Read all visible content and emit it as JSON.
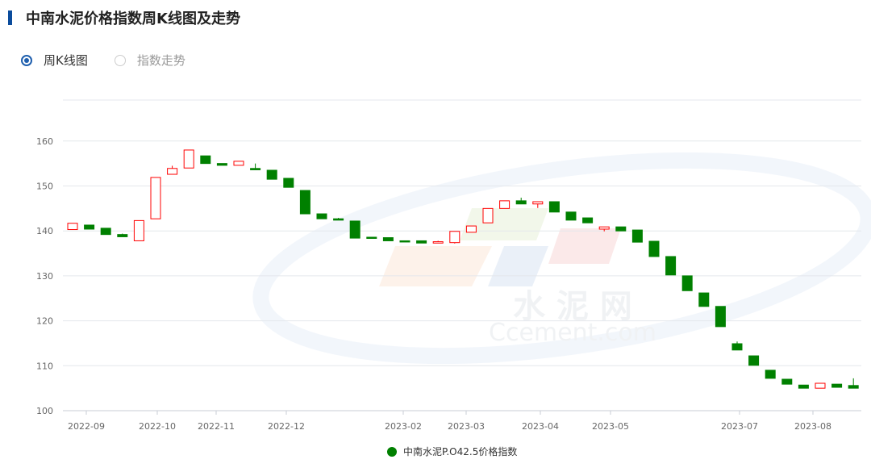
{
  "header": {
    "title": "中南水泥价格指数周K线图及走势",
    "accent": "#0b4c9c"
  },
  "view_options": [
    {
      "label": "周K线图",
      "selected": true
    },
    {
      "label": "指数走势",
      "selected": false
    }
  ],
  "watermark": {
    "text_cn": "水 泥 网",
    "text_en": "Ccement.com"
  },
  "chart_data": {
    "type": "candlestick",
    "title": "",
    "ylim": [
      100,
      170
    ],
    "yticks": [
      100,
      110,
      120,
      130,
      140,
      150,
      160
    ],
    "xticks": [
      "2022-09",
      "2022-10",
      "2022-11",
      "2022-12",
      "2023-02",
      "2023-03",
      "2023-04",
      "2023-05",
      "2023-07",
      "2023-08"
    ],
    "grid": true,
    "legend_position": "bottom",
    "series": [
      {
        "name": "中南水泥P.O42.5价格指数",
        "up_color": "#ff0000",
        "down_color": "#008000",
        "candles": [
          {
            "o": 140.3,
            "c": 141.7
          },
          {
            "o": 141.3,
            "c": 140.4
          },
          {
            "o": 140.6,
            "c": 139.2
          },
          {
            "o": 139.2,
            "c": 138.7,
            "h": 139.4
          },
          {
            "o": 137.8,
            "c": 142.3
          },
          {
            "o": 142.7,
            "c": 151.9
          },
          {
            "o": 152.6,
            "c": 153.9,
            "h": 154.5
          },
          {
            "o": 154.0,
            "c": 158.0
          },
          {
            "o": 156.7,
            "c": 155.0
          },
          {
            "o": 155.0,
            "c": 154.6
          },
          {
            "o": 154.6,
            "c": 155.5
          },
          {
            "o": 153.9,
            "c": 153.6,
            "h": 155.0
          },
          {
            "o": 153.5,
            "c": 151.5
          },
          {
            "o": 151.7,
            "c": 149.7
          },
          {
            "o": 149.0,
            "c": 143.8
          },
          {
            "o": 143.8,
            "c": 142.7
          },
          {
            "o": 142.7,
            "c": 142.4,
            "h": 142.9
          },
          {
            "o": 142.2,
            "c": 138.4
          },
          {
            "o": 138.6,
            "c": 138.5
          },
          {
            "o": 138.5,
            "c": 137.8
          },
          {
            "o": 137.8,
            "c": 137.7
          },
          {
            "o": 137.8,
            "c": 137.3
          },
          {
            "o": 137.3,
            "c": 137.6,
            "h": 137.8
          },
          {
            "o": 137.4,
            "c": 139.9,
            "l": 137.2
          },
          {
            "o": 139.7,
            "c": 141.1
          },
          {
            "o": 141.8,
            "c": 145.0
          },
          {
            "o": 145.0,
            "c": 146.7
          },
          {
            "o": 146.7,
            "c": 146.0,
            "h": 147.4
          },
          {
            "o": 146.0,
            "c": 146.5,
            "l": 145.1
          },
          {
            "o": 146.5,
            "c": 144.2
          },
          {
            "o": 144.2,
            "c": 142.4
          },
          {
            "o": 142.9,
            "c": 141.8
          },
          {
            "o": 140.4,
            "c": 140.9,
            "l": 139.9
          },
          {
            "o": 140.9,
            "c": 140.0
          },
          {
            "o": 140.2,
            "c": 137.5
          },
          {
            "o": 137.7,
            "c": 134.3
          },
          {
            "o": 134.3,
            "c": 130.2
          },
          {
            "o": 130.0,
            "c": 126.7
          },
          {
            "o": 126.2,
            "c": 123.2
          },
          {
            "o": 123.2,
            "c": 118.7
          },
          {
            "o": 114.9,
            "c": 113.5,
            "h": 115.4
          },
          {
            "o": 112.2,
            "c": 110.1
          },
          {
            "o": 109.0,
            "c": 107.2
          },
          {
            "o": 107.0,
            "c": 105.9
          },
          {
            "o": 105.7,
            "c": 105.0
          },
          {
            "o": 105.0,
            "c": 106.1
          },
          {
            "o": 105.9,
            "c": 105.2
          },
          {
            "o": 105.6,
            "c": 105.0,
            "h": 107.2
          }
        ]
      }
    ]
  }
}
